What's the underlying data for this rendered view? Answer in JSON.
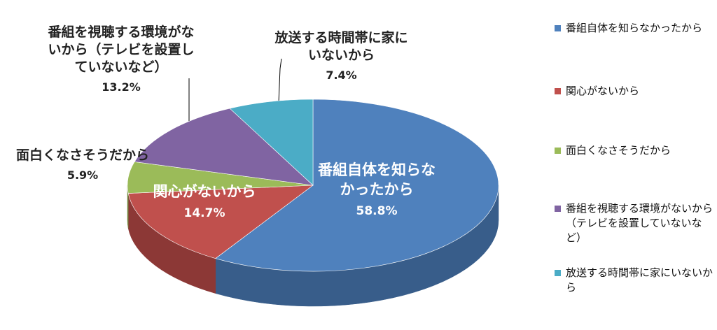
{
  "chart_data": {
    "type": "pie",
    "style": "3d",
    "title": "",
    "slices": [
      {
        "label": "番組自体を知らなかったから",
        "short_label": "番組自体を知らなかったから",
        "value": 58.8,
        "pct_text": "58.8%",
        "color": "#4F81BD",
        "side": "#385D8A"
      },
      {
        "label": "関心がないから",
        "short_label": "関心がないから",
        "value": 14.7,
        "pct_text": "14.7%",
        "color": "#C0504D",
        "side": "#8C3836"
      },
      {
        "label": "面白くなさそうだから",
        "short_label": "面白くなさそうだから",
        "value": 5.9,
        "pct_text": "5.9%",
        "color": "#9BBB59",
        "side": "#71893F"
      },
      {
        "label": "番組を視聴する環境がないから（テレビを設置していないなど）",
        "short_label": "番組を視聴する環境がないから（テレビを設置していないなど）",
        "value": 13.2,
        "pct_text": "13.2%",
        "color": "#8064A2",
        "side": "#5C4776"
      },
      {
        "label": "放送する時間帯に家にいないから",
        "short_label": "放送する時間帯に家にいないから",
        "value": 7.4,
        "pct_text": "7.4%",
        "color": "#4BACC6",
        "side": "#31859C"
      }
    ],
    "legend_position": "right"
  }
}
